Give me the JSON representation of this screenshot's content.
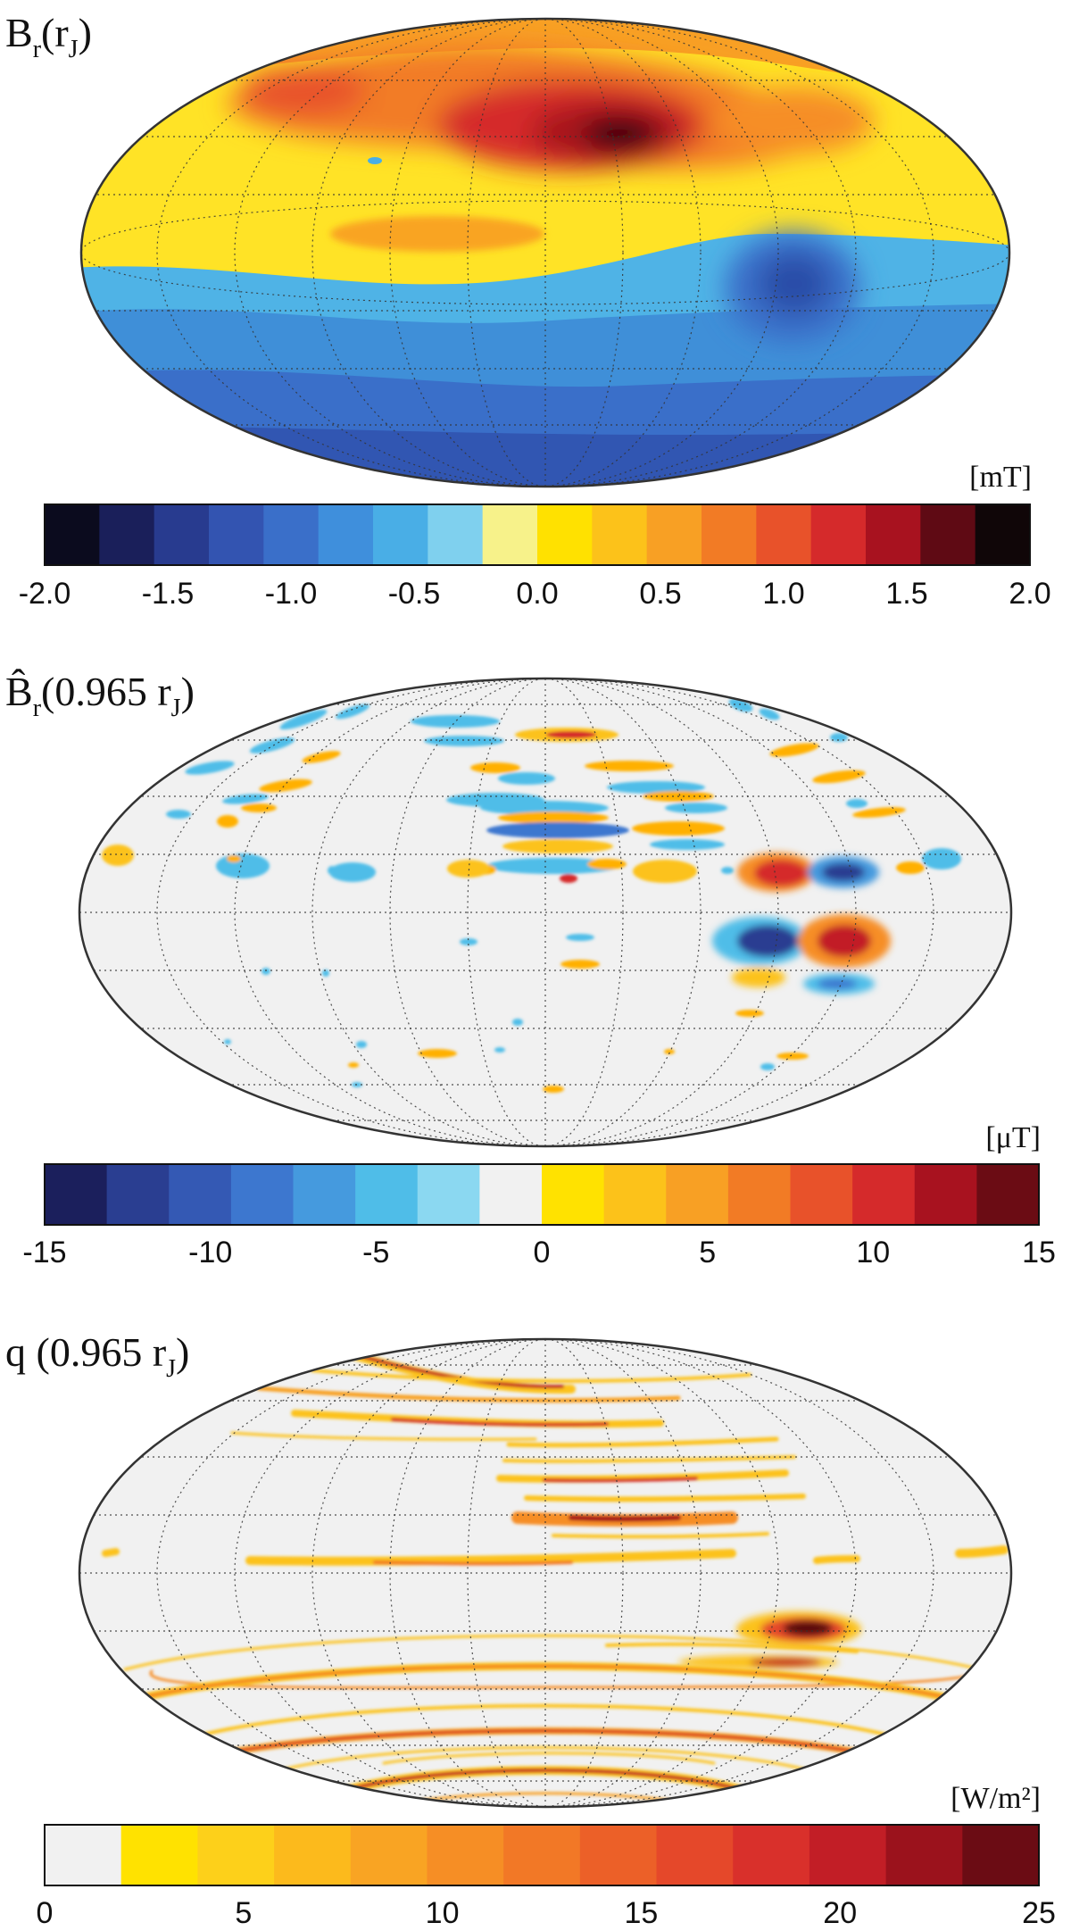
{
  "chart_data": [
    {
      "type": "heatmap",
      "projection": "hammer",
      "title_main": "B",
      "title_sub": "r",
      "title_tail_open": "(r",
      "title_tail_sub": "J",
      "title_tail_close": ")",
      "unit": "[mT]",
      "colorbar": {
        "range": [
          -2.0,
          2.0
        ],
        "ticks": [
          -2.0,
          -1.5,
          -1.0,
          -0.5,
          0.0,
          0.5,
          1.0,
          1.5,
          2.0
        ],
        "tick_labels": [
          "-2.0",
          "-1.5",
          "-1.0",
          "-0.5",
          "0.0",
          "0.5",
          "1.0",
          "1.5",
          "2.0"
        ],
        "colors": [
          "#0b0b1e",
          "#1a1f5a",
          "#283b8f",
          "#3354b1",
          "#3a6fc9",
          "#3f8fdc",
          "#49aee6",
          "#7fd0ee",
          "#f7f28a",
          "#ffe100",
          "#fcc21a",
          "#f8a024",
          "#f27b25",
          "#e8522a",
          "#d52a2b",
          "#a8121f",
          "#5f0a14",
          "#100608"
        ]
      },
      "background_value": 0.3,
      "features": [
        {
          "name": "northern-band",
          "lon": 0,
          "lat": 70,
          "value": 0.8
        },
        {
          "name": "great-blue-spot-west",
          "lon": -120,
          "lat": 62,
          "value": 1.1
        },
        {
          "name": "main-positive-patch",
          "lon": 20,
          "lat": 55,
          "value": 2.0
        },
        {
          "name": "eastern-lobe",
          "lon": 110,
          "lat": 50,
          "value": 0.9
        },
        {
          "name": "equatorial-ridge",
          "lon": -10,
          "lat": 10,
          "value": 0.6
        },
        {
          "name": "great-blue-spot",
          "lon": 120,
          "lat": -5,
          "value": -1.1
        },
        {
          "name": "southern-band",
          "lon": 0,
          "lat": -25,
          "value": -0.6
        },
        {
          "name": "south-polar-region",
          "lon": 0,
          "lat": -60,
          "value": -1.0
        }
      ]
    },
    {
      "type": "heatmap",
      "projection": "hammer",
      "title_main": "B̂",
      "title_sub": "r",
      "title_tail_open": "(0.965 r",
      "title_tail_sub": "J",
      "title_tail_close": ")",
      "unit": "[μT]",
      "colorbar": {
        "range": [
          -15,
          15
        ],
        "ticks": [
          -15,
          -10,
          -5,
          0,
          5,
          10,
          15
        ],
        "tick_labels": [
          "-15",
          "-10",
          "-5",
          "0",
          "5",
          "10",
          "15"
        ],
        "colors": [
          "#1b1f5c",
          "#2a3e91",
          "#3459b4",
          "#3d77cf",
          "#459ade",
          "#4fbde8",
          "#8bd8f1",
          "#f1f1f1",
          "#ffe200",
          "#fcc21a",
          "#f8a024",
          "#f27b25",
          "#e8522a",
          "#d52a2b",
          "#a8121f",
          "#6b0c14"
        ]
      },
      "background_value": 0,
      "features": [
        {
          "name": "spot-positive-a",
          "lon": 60,
          "lat": 23,
          "value": 14
        },
        {
          "name": "spot-negative-a",
          "lon": 90,
          "lat": 22,
          "value": -10
        },
        {
          "name": "spot-negative-b",
          "lon": 60,
          "lat": -3,
          "value": -14
        },
        {
          "name": "spot-positive-b",
          "lon": 90,
          "lat": -3,
          "value": 14
        },
        {
          "name": "spot-positive-c",
          "lon": 57,
          "lat": -10,
          "value": 6
        },
        {
          "name": "spot-negative-c",
          "lon": 89,
          "lat": -12,
          "value": -9
        },
        {
          "name": "stripe-stack-center",
          "lon": 0,
          "lat": 40,
          "value": 8
        }
      ]
    },
    {
      "type": "heatmap",
      "projection": "hammer",
      "title_main": "q",
      "title_sub": "",
      "title_tail_open": " (0.965 r",
      "title_tail_sub": "J",
      "title_tail_close": ")",
      "unit": "[W/m²]",
      "colorbar": {
        "range": [
          0,
          25
        ],
        "ticks": [
          0,
          5,
          10,
          15,
          20,
          25
        ],
        "tick_labels": [
          "0",
          "5",
          "10",
          "15",
          "20",
          "25"
        ],
        "colors": [
          "#f1f1f1",
          "#ffe200",
          "#fdd01a",
          "#fcba1c",
          "#f9a423",
          "#f68e25",
          "#f27826",
          "#ec6028",
          "#e5482a",
          "#d9302b",
          "#c21e26",
          "#9b121c",
          "#6b0c14"
        ]
      },
      "background_value": 0,
      "features": [
        {
          "name": "hot-spot",
          "lon": 87,
          "lat": -2,
          "value": 25
        },
        {
          "name": "hot-spot-lower",
          "lon": 80,
          "lat": -9,
          "value": 18
        },
        {
          "name": "northern-arcs",
          "lon": 0,
          "lat": 60,
          "value": 14
        },
        {
          "name": "equatorial-streak",
          "lon": -20,
          "lat": 16,
          "value": 9
        },
        {
          "name": "southern-rings",
          "lon": 0,
          "lat": -50,
          "value": 12
        }
      ]
    }
  ]
}
